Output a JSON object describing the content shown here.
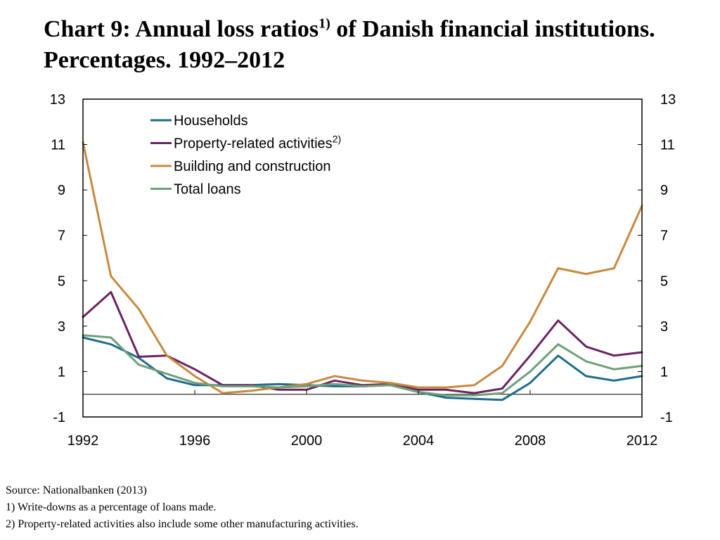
{
  "title": {
    "main": "Chart 9: Annual loss ratios",
    "sup": "1)",
    "rest": " of Danish financial institutions. Percentages. 1992–2012"
  },
  "footnotes": {
    "source": "Source: Nationalbanken (2013)",
    "note1": "1) Write-downs as a percentage of loans made.",
    "note2": "2) Property-related activities also include some other manufacturing activities."
  },
  "chart_data": {
    "type": "line",
    "x": [
      1992,
      1993,
      1994,
      1995,
      1996,
      1997,
      1998,
      1999,
      2000,
      2001,
      2002,
      2003,
      2004,
      2005,
      2006,
      2007,
      2008,
      2009,
      2010,
      2011,
      2012
    ],
    "xlim": [
      1992,
      2012
    ],
    "xticks": [
      "1992",
      "1996",
      "2000",
      "2004",
      "2008",
      "2012"
    ],
    "ylim": [
      -1,
      13
    ],
    "yticks": [
      "-1",
      "1",
      "3",
      "5",
      "7",
      "9",
      "11",
      "13"
    ],
    "zero_line": true,
    "legend_position": "top-left",
    "series": [
      {
        "name": "Households",
        "label_sup": "",
        "color": "#1f6b8c",
        "values": [
          2.5,
          2.2,
          1.6,
          0.7,
          0.4,
          0.4,
          0.4,
          0.45,
          0.4,
          0.35,
          0.35,
          0.4,
          0.1,
          -0.15,
          -0.2,
          -0.25,
          0.5,
          1.7,
          0.8,
          0.6,
          0.8
        ]
      },
      {
        "name": "Property-related activities",
        "label_sup": "2)",
        "color": "#6b2460",
        "values": [
          3.4,
          4.5,
          1.65,
          1.7,
          1.1,
          0.4,
          0.4,
          0.2,
          0.2,
          0.6,
          0.4,
          0.45,
          0.2,
          0.2,
          0.05,
          0.25,
          1.7,
          3.25,
          2.1,
          1.7,
          1.85
        ]
      },
      {
        "name": "Building and construction",
        "label_sup": "",
        "color": "#c8893e",
        "values": [
          11.1,
          5.2,
          3.75,
          1.7,
          0.8,
          0.05,
          0.15,
          0.3,
          0.45,
          0.8,
          0.6,
          0.5,
          0.3,
          0.3,
          0.4,
          1.25,
          3.2,
          5.55,
          5.3,
          5.55,
          8.3
        ]
      },
      {
        "name": "Total loans",
        "label_sup": "",
        "color": "#6fa07a",
        "values": [
          2.6,
          2.5,
          1.3,
          0.9,
          0.5,
          0.35,
          0.35,
          0.3,
          0.35,
          0.45,
          0.35,
          0.4,
          0.1,
          -0.05,
          -0.05,
          0.05,
          1.0,
          2.2,
          1.45,
          1.1,
          1.25
        ]
      }
    ]
  }
}
